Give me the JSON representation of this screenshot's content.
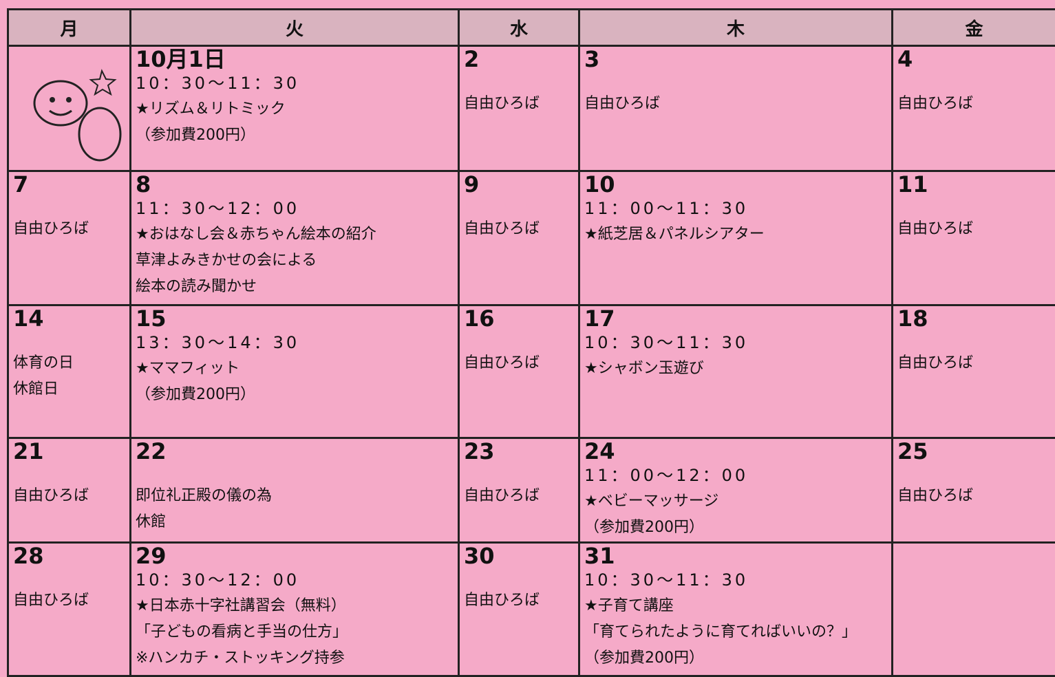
{
  "header": {
    "days": [
      "月",
      "火",
      "水",
      "木",
      "金"
    ]
  },
  "weeks": [
    [
      {},
      {
        "date": "10月1日",
        "lines": [
          "10：30〜11：30",
          "★リズム＆リトミック",
          "（参加費200円）"
        ]
      },
      {
        "date": "2",
        "lines": [
          "自由ひろば"
        ]
      },
      {
        "date": "3",
        "lines": [
          "自由ひろば"
        ]
      },
      {
        "date": "4",
        "lines": [
          "自由ひろば"
        ]
      }
    ],
    [
      {
        "date": "7",
        "lines": [
          "自由ひろば"
        ]
      },
      {
        "date": "8",
        "lines": [
          "11：30〜12：00",
          "★おはなし会＆赤ちゃん絵本の紹介",
          "草津よみきかせの会による",
          "絵本の読み聞かせ"
        ]
      },
      {
        "date": "9",
        "lines": [
          "自由ひろば"
        ]
      },
      {
        "date": "10",
        "lines": [
          "11：00〜11：30",
          "★紙芝居＆パネルシアター"
        ]
      },
      {
        "date": "11",
        "lines": [
          "自由ひろば"
        ]
      }
    ],
    [
      {
        "date": "14",
        "lines": [
          "体育の日",
          "休館日"
        ]
      },
      {
        "date": "15",
        "lines": [
          "13：30〜14：30",
          "★ママフィット",
          "（参加費200円）"
        ]
      },
      {
        "date": "16",
        "lines": [
          "自由ひろば"
        ]
      },
      {
        "date": "17",
        "lines": [
          "10：30〜11：30",
          "★シャボン玉遊び"
        ]
      },
      {
        "date": "18",
        "lines": [
          "自由ひろば"
        ]
      }
    ],
    [
      {
        "date": "21",
        "lines": [
          "自由ひろば"
        ]
      },
      {
        "date": "22",
        "lines": [
          "即位礼正殿の儀の為",
          "休館"
        ]
      },
      {
        "date": "23",
        "lines": [
          "自由ひろば"
        ]
      },
      {
        "date": "24",
        "lines": [
          "11：00〜12：00",
          "★ベビーマッサージ",
          "（参加費200円）"
        ]
      },
      {
        "date": "25",
        "lines": [
          "自由ひろば"
        ]
      }
    ],
    [
      {
        "date": "28",
        "lines": [
          "自由ひろば"
        ]
      },
      {
        "date": "29",
        "lines": [
          "10：30〜12：00",
          "★日本赤十字社講習会（無料）",
          "「子どもの看病と手当の仕方」",
          "※ハンカチ・ストッキング持参"
        ]
      },
      {
        "date": "30",
        "lines": [
          "自由ひろば"
        ]
      },
      {
        "date": "31",
        "lines": [
          "10：30〜11：30",
          "★子育て講座",
          "「育てられたように育てればいいの？」",
          "（参加費200円）"
        ]
      },
      {}
    ]
  ]
}
